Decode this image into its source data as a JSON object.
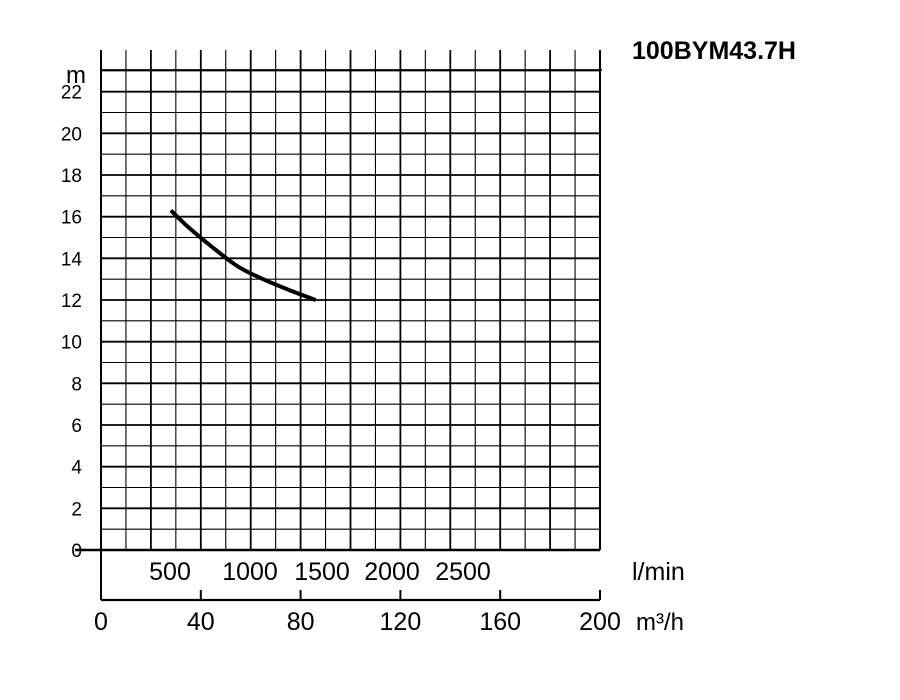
{
  "chart_data": {
    "type": "line",
    "title": "100BYM43.7H",
    "ylabel": "m",
    "ylim": [
      0,
      24
    ],
    "yticks": [
      0,
      2,
      4,
      6,
      8,
      10,
      12,
      14,
      16,
      18,
      20,
      22
    ],
    "xlim": [
      0,
      200
    ],
    "x_unit": "m³/h",
    "xticks": [
      0,
      40,
      80,
      120,
      160,
      200
    ],
    "x2_unit": "l/min",
    "x2_tick_labels": [
      "500",
      "1000",
      "1500",
      "2000",
      "2500"
    ],
    "grid": true,
    "series": [
      {
        "x": [
          28,
          35,
          45,
          55,
          65,
          75,
          86
        ],
        "y": [
          16.3,
          15.5,
          14.5,
          13.6,
          13.0,
          12.5,
          12.0
        ]
      }
    ]
  }
}
